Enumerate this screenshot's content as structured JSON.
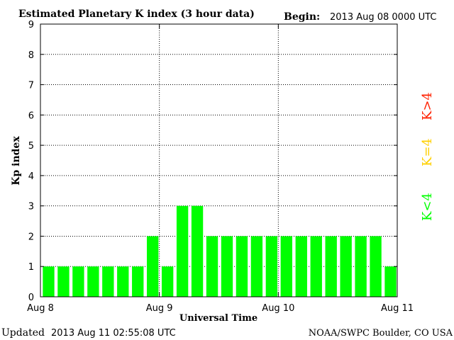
{
  "chart_data": {
    "type": "bar",
    "title": "Estimated Planetary K index (3 hour data)",
    "begin_label": "Begin:",
    "begin_value": "2013 Aug 08 0000 UTC",
    "xlabel": "Universal Time",
    "ylabel": "Kp index",
    "x_ticks": [
      "Aug 8",
      "Aug 9",
      "Aug 10",
      "Aug 11"
    ],
    "y_ticks": [
      "0",
      "1",
      "2",
      "3",
      "4",
      "5",
      "6",
      "7",
      "8",
      "9"
    ],
    "ylim": [
      0,
      9
    ],
    "grid": true,
    "bar_color": "#00ff00",
    "values": [
      1,
      1,
      1,
      1,
      1,
      1,
      1,
      2,
      1,
      3,
      3,
      2,
      2,
      2,
      2,
      2,
      2,
      2,
      2,
      2,
      2,
      2,
      2,
      1
    ],
    "legend": [
      {
        "label": "K>4",
        "color": "#ff2000"
      },
      {
        "label": "K=4",
        "color": "#ffd000"
      },
      {
        "label": "K<4",
        "color": "#00ff00"
      }
    ]
  },
  "footer": {
    "updated_label": "Updated",
    "updated_value": "2013 Aug 11 02:55:08 UTC",
    "credit": "NOAA/SWPC Boulder, CO USA"
  }
}
